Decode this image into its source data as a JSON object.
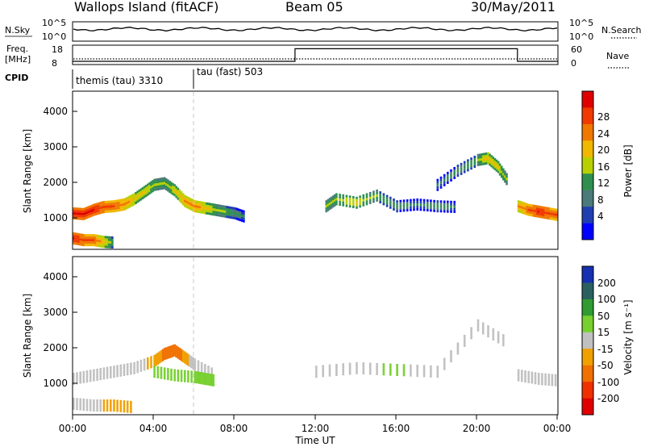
{
  "header": {
    "station": "Wallops Island (fitACF)",
    "beam": "Beam 05",
    "date": "30/May/2011"
  },
  "top_panels": {
    "nsky_label": "N.Sky",
    "nsky_ticks": [
      "10^5",
      "10^0"
    ],
    "nsearch_label": "N.Search",
    "nsearch_ticks": [
      "10^5",
      "10^0"
    ],
    "freq_label_line1": "Freq.",
    "freq_label_line2": "[MHz]",
    "freq_ticks": [
      "18",
      "8"
    ],
    "nave_label": "Nave",
    "nave_ticks": [
      "60",
      "0"
    ],
    "cpid_label": "CPID",
    "cpid_modes": [
      {
        "label": "themis (tau) 3310",
        "start_hour": 0,
        "end_hour": 6
      },
      {
        "label": "tau (fast) 503",
        "start_hour": 6,
        "end_hour": 24
      }
    ],
    "nave_levels": [
      {
        "start_hour": 0,
        "end_hour": 11,
        "value": 10
      },
      {
        "start_hour": 11,
        "end_hour": 22,
        "value": 49
      },
      {
        "start_hour": 22,
        "end_hour": 24,
        "value": 10
      }
    ]
  },
  "axes": {
    "x_ticks": [
      "00:00",
      "04:00",
      "08:00",
      "12:00",
      "16:00",
      "20:00",
      "00:00"
    ],
    "xlabel": "Time UT",
    "ylabel": "Slant Range [km]",
    "y_ticks": [
      "1000",
      "2000",
      "3000",
      "4000"
    ]
  },
  "power_scale": {
    "title": "Power [dB]",
    "labels": [
      "28",
      "24",
      "20",
      "16",
      "12",
      "8",
      "4"
    ],
    "colors": [
      "#e00000",
      "#f03a00",
      "#f07800",
      "#f0b800",
      "#b8d000",
      "#2f8f4f",
      "#4a7a7a",
      "#1f3fb0",
      "#0000ff"
    ]
  },
  "velocity_scale": {
    "title": "Velocity [m s⁻¹]",
    "labels": [
      "200",
      "100",
      "50",
      "15",
      "-15",
      "-50",
      "-100",
      "-200"
    ],
    "colors": [
      "#1530b0",
      "#2a6060",
      "#2f9b30",
      "#77d030",
      "#c0c0c0",
      "#f0a000",
      "#f07000",
      "#f03000",
      "#e00000"
    ]
  },
  "chart_data": [
    {
      "type": "heatmap",
      "title": "Power [dB]",
      "xlabel": "Time UT",
      "ylabel": "Slant Range [km]",
      "xlim": [
        0,
        24
      ],
      "ylim": [
        180,
        4600
      ],
      "series": [
        {
          "x": [
            0,
            0.5,
            1,
            1.5,
            2,
            2.5,
            3,
            3.5,
            4,
            4.5,
            5,
            5.5,
            6,
            6.5,
            7,
            7.5,
            8,
            8.5
          ],
          "y": [
            1200,
            1180,
            1300,
            1380,
            1400,
            1450,
            1600,
            1800,
            2000,
            2050,
            1850,
            1550,
            1400,
            1350,
            1300,
            1250,
            1200,
            1100
          ],
          "value": [
            28,
            28,
            28,
            26,
            24,
            22,
            18,
            16,
            14,
            12,
            16,
            20,
            22,
            18,
            14,
            12,
            10,
            8
          ]
        },
        {
          "x": [
            0,
            0.5,
            1,
            1.5,
            2
          ],
          "y": [
            500,
            450,
            450,
            400,
            380
          ],
          "value": [
            28,
            26,
            24,
            18,
            10
          ]
        },
        {
          "x": [
            12.5,
            13,
            14,
            15,
            16,
            17,
            18,
            19
          ],
          "y": [
            1400,
            1600,
            1500,
            1700,
            1400,
            1450,
            1400,
            1380
          ],
          "value": [
            12,
            14,
            16,
            12,
            10,
            8,
            10,
            8
          ]
        },
        {
          "x": [
            18,
            19,
            20,
            20.5,
            21,
            21.5
          ],
          "y": [
            2000,
            2400,
            2700,
            2750,
            2500,
            2100
          ],
          "value": [
            8,
            10,
            12,
            18,
            16,
            12
          ]
        },
        {
          "x": [
            22,
            22.5,
            23,
            23.5,
            24
          ],
          "y": [
            1400,
            1300,
            1250,
            1200,
            1150
          ],
          "value": [
            20,
            24,
            28,
            26,
            24
          ]
        }
      ]
    },
    {
      "type": "heatmap",
      "title": "Velocity [m s⁻¹]",
      "xlabel": "Time UT",
      "ylabel": "Slant Range [km]",
      "xlim": [
        0,
        24
      ],
      "ylim": [
        180,
        4600
      ],
      "series": [
        {
          "x": [
            0,
            1,
            2,
            3,
            4,
            4.5,
            5,
            5.5,
            6,
            7
          ],
          "y": [
            1200,
            1300,
            1400,
            1500,
            1700,
            1900,
            2000,
            1800,
            1600,
            1300
          ],
          "value": [
            0,
            0,
            5,
            0,
            -30,
            -60,
            -80,
            -40,
            10,
            0
          ]
        },
        {
          "x": [
            4,
            5,
            6,
            6.5,
            7
          ],
          "y": [
            1400,
            1300,
            1250,
            1200,
            1150
          ],
          "value": [
            30,
            40,
            30,
            20,
            15
          ]
        },
        {
          "x": [
            0,
            1,
            2,
            3
          ],
          "y": [
            500,
            450,
            450,
            400
          ],
          "value": [
            0,
            -5,
            -30,
            -20
          ]
        },
        {
          "x": [
            12,
            14,
            16,
            18,
            20,
            21.5
          ],
          "y": [
            1400,
            1500,
            1450,
            1400,
            2700,
            2200
          ],
          "value": [
            0,
            5,
            20,
            0,
            0,
            10
          ]
        },
        {
          "x": [
            22,
            23,
            24
          ],
          "y": [
            1300,
            1200,
            1150
          ],
          "value": [
            0,
            0,
            0
          ]
        }
      ]
    }
  ]
}
